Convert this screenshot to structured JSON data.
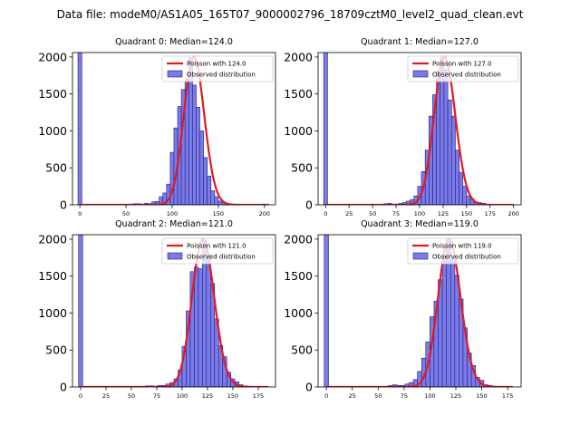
{
  "title": "Data file: modeM0/AS1A05_165T07_9000002796_18709cztM0_level2_quad_clean.evt",
  "colors": {
    "bar_fill": "#7b7be6",
    "bar_edge": "#1a1a8c",
    "poisson_line": "#e31a1c"
  },
  "chart_data": [
    {
      "type": "bar",
      "title": "Quadrant 0: Median=124.0",
      "median": 124.0,
      "xlim": [
        -8,
        212
      ],
      "ylim": [
        0,
        2060
      ],
      "xticks": [
        0,
        50,
        100,
        150,
        200
      ],
      "yticks": [
        0,
        500,
        1000,
        1500,
        2000
      ],
      "legend": [
        "Poisson with 124.0",
        "Observed distribution"
      ],
      "legend_position": "top-right",
      "bin_width": 4.1,
      "zero_bin": {
        "x": 0,
        "value": 2060
      },
      "bins": [
        {
          "x": 60,
          "value": 15
        },
        {
          "x": 64,
          "value": 15
        },
        {
          "x": 68,
          "value": 10
        },
        {
          "x": 72,
          "value": 20
        },
        {
          "x": 76,
          "value": 15
        },
        {
          "x": 80,
          "value": 40
        },
        {
          "x": 84,
          "value": 45
        },
        {
          "x": 88,
          "value": 110
        },
        {
          "x": 92,
          "value": 160
        },
        {
          "x": 96,
          "value": 280
        },
        {
          "x": 100,
          "value": 710
        },
        {
          "x": 104,
          "value": 1040
        },
        {
          "x": 108,
          "value": 1330
        },
        {
          "x": 112,
          "value": 1560
        },
        {
          "x": 116,
          "value": 1700
        },
        {
          "x": 120,
          "value": 1990
        },
        {
          "x": 124,
          "value": 1620
        },
        {
          "x": 128,
          "value": 1320
        },
        {
          "x": 132,
          "value": 1000
        },
        {
          "x": 136,
          "value": 640
        },
        {
          "x": 140,
          "value": 390
        },
        {
          "x": 144,
          "value": 190
        },
        {
          "x": 148,
          "value": 110
        },
        {
          "x": 152,
          "value": 50
        },
        {
          "x": 156,
          "value": 30
        },
        {
          "x": 160,
          "value": 15
        },
        {
          "x": 164,
          "value": 10
        }
      ],
      "poisson": {
        "lambda": 124.0,
        "scale": 2000,
        "x_range": [
          0,
          205
        ]
      }
    },
    {
      "type": "bar",
      "title": "Quadrant 1: Median=127.0",
      "median": 127.0,
      "xlim": [
        -8,
        208
      ],
      "ylim": [
        0,
        2060
      ],
      "xticks": [
        0,
        25,
        50,
        75,
        100,
        125,
        150,
        175,
        200
      ],
      "yticks": [
        0,
        500,
        1000,
        1500,
        2000
      ],
      "legend": [
        "Poisson with 127.0",
        "Observed distribution"
      ],
      "legend_position": "top-right",
      "bin_width": 4.1,
      "zero_bin": {
        "x": 0,
        "value": 2060
      },
      "bins": [
        {
          "x": 64,
          "value": 15
        },
        {
          "x": 68,
          "value": 20
        },
        {
          "x": 72,
          "value": 10
        },
        {
          "x": 76,
          "value": 10
        },
        {
          "x": 80,
          "value": 20
        },
        {
          "x": 84,
          "value": 30
        },
        {
          "x": 88,
          "value": 50
        },
        {
          "x": 92,
          "value": 70
        },
        {
          "x": 96,
          "value": 120
        },
        {
          "x": 100,
          "value": 250
        },
        {
          "x": 104,
          "value": 450
        },
        {
          "x": 108,
          "value": 740
        },
        {
          "x": 112,
          "value": 1200
        },
        {
          "x": 116,
          "value": 1490
        },
        {
          "x": 120,
          "value": 1810
        },
        {
          "x": 124,
          "value": 1990
        },
        {
          "x": 128,
          "value": 1830
        },
        {
          "x": 132,
          "value": 1420
        },
        {
          "x": 136,
          "value": 1200
        },
        {
          "x": 140,
          "value": 740
        },
        {
          "x": 144,
          "value": 440
        },
        {
          "x": 148,
          "value": 250
        },
        {
          "x": 152,
          "value": 120
        },
        {
          "x": 156,
          "value": 80
        },
        {
          "x": 160,
          "value": 40
        },
        {
          "x": 164,
          "value": 30
        },
        {
          "x": 168,
          "value": 20
        },
        {
          "x": 172,
          "value": 10
        }
      ],
      "poisson": {
        "lambda": 127.0,
        "scale": 2000,
        "x_range": [
          0,
          200
        ]
      }
    },
    {
      "type": "bar",
      "title": "Quadrant 2: Median=121.0",
      "median": 121.0,
      "xlim": [
        -8,
        192
      ],
      "ylim": [
        0,
        2060
      ],
      "xticks": [
        0,
        25,
        50,
        75,
        100,
        125,
        150,
        175
      ],
      "yticks": [
        0,
        500,
        1000,
        1500,
        2000
      ],
      "legend": [
        "Poisson with 121.0",
        "Observed distribution"
      ],
      "legend_position": "top-right",
      "bin_width": 4.0,
      "zero_bin": {
        "x": 0,
        "value": 2060
      },
      "bins": [
        {
          "x": 66,
          "value": 15
        },
        {
          "x": 70,
          "value": 15
        },
        {
          "x": 74,
          "value": 10
        },
        {
          "x": 78,
          "value": 20
        },
        {
          "x": 82,
          "value": 20
        },
        {
          "x": 86,
          "value": 40
        },
        {
          "x": 90,
          "value": 60
        },
        {
          "x": 94,
          "value": 110
        },
        {
          "x": 98,
          "value": 230
        },
        {
          "x": 102,
          "value": 550
        },
        {
          "x": 106,
          "value": 1030
        },
        {
          "x": 110,
          "value": 1560
        },
        {
          "x": 114,
          "value": 1620
        },
        {
          "x": 118,
          "value": 1600
        },
        {
          "x": 122,
          "value": 1980
        },
        {
          "x": 126,
          "value": 1790
        },
        {
          "x": 130,
          "value": 1400
        },
        {
          "x": 134,
          "value": 920
        },
        {
          "x": 138,
          "value": 560
        },
        {
          "x": 142,
          "value": 410
        },
        {
          "x": 146,
          "value": 200
        },
        {
          "x": 150,
          "value": 110
        },
        {
          "x": 154,
          "value": 70
        },
        {
          "x": 158,
          "value": 30
        },
        {
          "x": 162,
          "value": 15
        },
        {
          "x": 166,
          "value": 10
        }
      ],
      "poisson": {
        "lambda": 121.0,
        "scale": 2000,
        "x_range": [
          0,
          185
        ]
      }
    },
    {
      "type": "bar",
      "title": "Quadrant 3: Median=119.0",
      "median": 119.0,
      "xlim": [
        -8,
        188
      ],
      "ylim": [
        0,
        2060
      ],
      "xticks": [
        0,
        25,
        50,
        75,
        100,
        125,
        150,
        175
      ],
      "yticks": [
        0,
        500,
        1000,
        1500,
        2000
      ],
      "legend": [
        "Poisson with 119.0",
        "Observed distribution"
      ],
      "legend_position": "top-right",
      "bin_width": 4.1,
      "zero_bin": {
        "x": 0,
        "value": 2060
      },
      "bins": [
        {
          "x": 62,
          "value": 20
        },
        {
          "x": 66,
          "value": 30
        },
        {
          "x": 70,
          "value": 20
        },
        {
          "x": 74,
          "value": 20
        },
        {
          "x": 78,
          "value": 40
        },
        {
          "x": 82,
          "value": 60
        },
        {
          "x": 86,
          "value": 100
        },
        {
          "x": 90,
          "value": 210
        },
        {
          "x": 94,
          "value": 390
        },
        {
          "x": 98,
          "value": 610
        },
        {
          "x": 102,
          "value": 950
        },
        {
          "x": 106,
          "value": 1160
        },
        {
          "x": 110,
          "value": 1450
        },
        {
          "x": 114,
          "value": 1780
        },
        {
          "x": 118,
          "value": 1970
        },
        {
          "x": 122,
          "value": 1730
        },
        {
          "x": 126,
          "value": 1510
        },
        {
          "x": 130,
          "value": 1190
        },
        {
          "x": 134,
          "value": 800
        },
        {
          "x": 138,
          "value": 460
        },
        {
          "x": 142,
          "value": 290
        },
        {
          "x": 146,
          "value": 130
        },
        {
          "x": 150,
          "value": 90
        },
        {
          "x": 154,
          "value": 30
        },
        {
          "x": 158,
          "value": 20
        },
        {
          "x": 162,
          "value": 10
        }
      ],
      "poisson": {
        "lambda": 119.0,
        "scale": 2000,
        "x_range": [
          0,
          180
        ]
      }
    }
  ]
}
